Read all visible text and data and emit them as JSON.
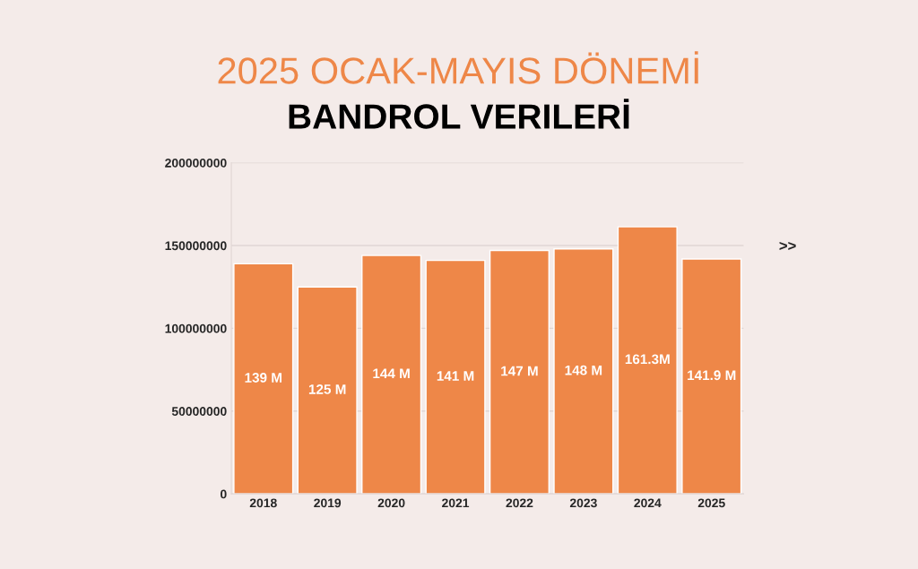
{
  "chart_data": {
    "type": "bar",
    "title": "2025 OCAK-MAYIS DÖNEMİ",
    "subtitle": "BANDROL VERILERİ",
    "categories": [
      "2018",
      "2019",
      "2020",
      "2021",
      "2022",
      "2023",
      "2024",
      "2025"
    ],
    "values": [
      139000000,
      125000000,
      144000000,
      141000000,
      147000000,
      148000000,
      161300000,
      141900000
    ],
    "value_labels": [
      "139 M",
      "125 M",
      "144 M",
      "141 M",
      "147 M",
      "148 M",
      "161.3M",
      "141.9 M"
    ],
    "color": "#ee8748",
    "ylim": [
      0,
      200000000
    ],
    "yticks": [
      0,
      50000000,
      100000000,
      150000000,
      200000000
    ],
    "grid": "y",
    "annotations": [
      ">>"
    ]
  }
}
